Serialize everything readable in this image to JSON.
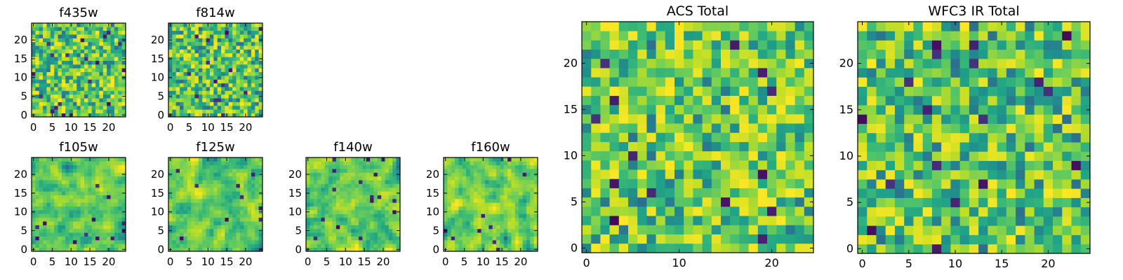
{
  "figure": {
    "panels": [
      {
        "id": "f435w",
        "title": "f435w"
      },
      {
        "id": "f814w",
        "title": "f814w"
      },
      {
        "id": "f105w",
        "title": "f105w"
      },
      {
        "id": "f125w",
        "title": "f125w"
      },
      {
        "id": "f140w",
        "title": "f140w"
      },
      {
        "id": "f160w",
        "title": "f160w"
      },
      {
        "id": "acs_total",
        "title": "ACS Total"
      },
      {
        "id": "wfc3_ir_total",
        "title": "WFC3 IR Total"
      }
    ]
  },
  "chart_data": [
    {
      "type": "heatmap",
      "title": "f435w",
      "grid_size": [
        25,
        25
      ],
      "xticks": [
        0,
        5,
        10,
        15,
        20
      ],
      "yticks": [
        0,
        5,
        10,
        15,
        20
      ],
      "xlim": [
        -0.5,
        24.5
      ],
      "ylim": [
        -0.5,
        24.5
      ],
      "colormap": "viridis",
      "seed": 11,
      "smooth": 0,
      "bright_bias": 0.45
    },
    {
      "type": "heatmap",
      "title": "f814w",
      "grid_size": [
        25,
        25
      ],
      "xticks": [
        0,
        5,
        10,
        15,
        20
      ],
      "yticks": [
        0,
        5,
        10,
        15,
        20
      ],
      "xlim": [
        -0.5,
        24.5
      ],
      "ylim": [
        -0.5,
        24.5
      ],
      "colormap": "viridis",
      "seed": 23,
      "smooth": 0,
      "bright_bias": 0.35
    },
    {
      "type": "heatmap",
      "title": "f105w",
      "grid_size": [
        25,
        25
      ],
      "xticks": [
        0,
        5,
        10,
        15,
        20
      ],
      "yticks": [
        0,
        5,
        10,
        15,
        20
      ],
      "xlim": [
        -0.5,
        24.5
      ],
      "ylim": [
        -0.5,
        24.5
      ],
      "colormap": "viridis",
      "seed": 37,
      "smooth": 1,
      "bright_bias": 0.4
    },
    {
      "type": "heatmap",
      "title": "f125w",
      "grid_size": [
        25,
        25
      ],
      "xticks": [
        0,
        5,
        10,
        15,
        20
      ],
      "yticks": [
        0,
        5,
        10,
        15,
        20
      ],
      "xlim": [
        -0.5,
        24.5
      ],
      "ylim": [
        -0.5,
        24.5
      ],
      "colormap": "viridis",
      "seed": 41,
      "smooth": 1,
      "bright_bias": 0.45
    },
    {
      "type": "heatmap",
      "title": "f140w",
      "grid_size": [
        25,
        25
      ],
      "xticks": [
        0,
        5,
        10,
        15,
        20
      ],
      "yticks": [
        0,
        5,
        10,
        15,
        20
      ],
      "xlim": [
        -0.5,
        24.5
      ],
      "ylim": [
        -0.5,
        24.5
      ],
      "colormap": "viridis",
      "seed": 53,
      "smooth": 1,
      "bright_bias": 0.4
    },
    {
      "type": "heatmap",
      "title": "f160w",
      "grid_size": [
        25,
        25
      ],
      "xticks": [
        0,
        5,
        10,
        15,
        20
      ],
      "yticks": [
        0,
        5,
        10,
        15,
        20
      ],
      "xlim": [
        -0.5,
        24.5
      ],
      "ylim": [
        -0.5,
        24.5
      ],
      "colormap": "viridis",
      "seed": 67,
      "smooth": 1,
      "bright_bias": 0.45
    },
    {
      "type": "heatmap",
      "title": "ACS Total",
      "grid_size": [
        25,
        25
      ],
      "xticks": [
        0,
        10,
        20
      ],
      "yticks": [
        0,
        5,
        10,
        15,
        20
      ],
      "xlim": [
        -0.5,
        24.5
      ],
      "ylim": [
        -0.5,
        24.5
      ],
      "colormap": "viridis",
      "seed": 79,
      "smooth": 0,
      "bright_bias": 0.55
    },
    {
      "type": "heatmap",
      "title": "WFC3 IR Total",
      "grid_size": [
        25,
        25
      ],
      "xticks": [
        0,
        5,
        10,
        15,
        20
      ],
      "yticks": [
        0,
        5,
        10,
        15,
        20
      ],
      "xlim": [
        -0.5,
        24.5
      ],
      "ylim": [
        -0.5,
        24.5
      ],
      "colormap": "viridis",
      "seed": 97,
      "smooth": 0,
      "bright_bias": 0.35
    }
  ]
}
